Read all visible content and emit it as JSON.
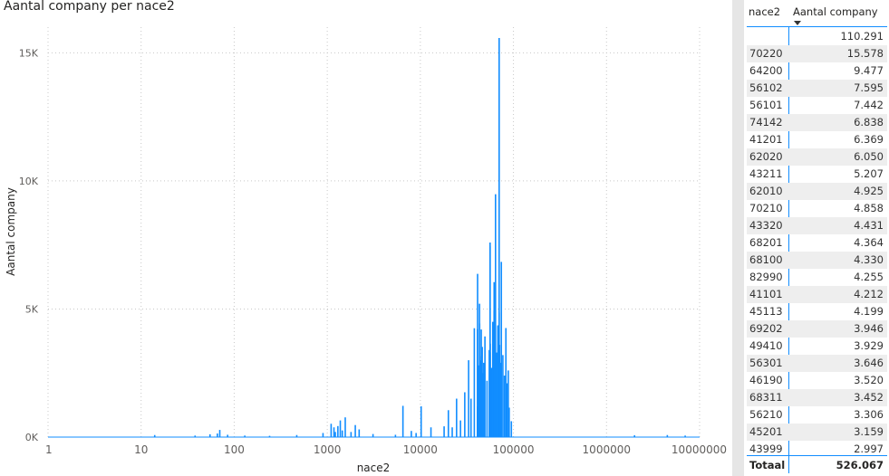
{
  "chart_data": {
    "type": "line",
    "title": "Aantal company per nace2",
    "xlabel": "nace2",
    "ylabel": "Aantal company",
    "xscale": "log",
    "xlim": [
      1,
      10000000
    ],
    "ylim": [
      0,
      16000
    ],
    "grid": true,
    "color": "#118dff",
    "x_ticks": [
      1,
      10,
      100,
      1000,
      10000,
      100000,
      1000000,
      10000000
    ],
    "x_tick_labels": [
      "1",
      "10",
      "100",
      "1000",
      "10000",
      "100000",
      "1000000",
      "10000000"
    ],
    "y_ticks": [
      0,
      5000,
      10000,
      15000
    ],
    "y_tick_labels": [
      "0K",
      "5K",
      "10K",
      "15K"
    ],
    "x": [
      14,
      38,
      55,
      66,
      70,
      85,
      130,
      240,
      470,
      900,
      1100,
      1180,
      1220,
      1300,
      1380,
      1450,
      1560,
      1800,
      2000,
      2200,
      3100,
      5400,
      6500,
      8000,
      9000,
      10200,
      13000,
      18000,
      20000,
      22000,
      24500,
      27000,
      30000,
      33000,
      35000,
      38000,
      41000,
      41101,
      41201,
      42000,
      43211,
      43320,
      43999,
      45000,
      45113,
      45201,
      46190,
      47000,
      48000,
      49410,
      52000,
      55000,
      56101,
      56102,
      56210,
      56301,
      58000,
      60000,
      62010,
      62020,
      64200,
      66000,
      68100,
      68201,
      68311,
      69202,
      70210,
      70220,
      71000,
      73000,
      74142,
      77000,
      80000,
      82990,
      85000,
      88000,
      90000,
      95000,
      2000000,
      4500000,
      7000000
    ],
    "y": [
      80,
      60,
      110,
      140,
      280,
      90,
      60,
      50,
      80,
      160,
      520,
      380,
      200,
      430,
      650,
      260,
      770,
      200,
      470,
      300,
      120,
      90,
      1220,
      240,
      160,
      1200,
      380,
      420,
      1050,
      380,
      1500,
      650,
      1750,
      3000,
      1500,
      4250,
      1200,
      4212,
      6369,
      2800,
      5207,
      4431,
      2997,
      1700,
      4199,
      3159,
      3520,
      2500,
      2900,
      3929,
      2200,
      3400,
      7442,
      7595,
      3306,
      3646,
      2700,
      4500,
      4925,
      6050,
      9477,
      3300,
      4330,
      4364,
      3452,
      3946,
      4858,
      15578,
      3600,
      2900,
      6838,
      3200,
      2400,
      4255,
      2100,
      2600,
      1150,
      620,
      70,
      80,
      60
    ]
  },
  "table": {
    "headers": {
      "nace2": "nace2",
      "count": "Aantal company"
    },
    "rows": [
      {
        "nace2": "",
        "count": "110.291"
      },
      {
        "nace2": "70220",
        "count": "15.578"
      },
      {
        "nace2": "64200",
        "count": "9.477"
      },
      {
        "nace2": "56102",
        "count": "7.595"
      },
      {
        "nace2": "56101",
        "count": "7.442"
      },
      {
        "nace2": "74142",
        "count": "6.838"
      },
      {
        "nace2": "41201",
        "count": "6.369"
      },
      {
        "nace2": "62020",
        "count": "6.050"
      },
      {
        "nace2": "43211",
        "count": "5.207"
      },
      {
        "nace2": "62010",
        "count": "4.925"
      },
      {
        "nace2": "70210",
        "count": "4.858"
      },
      {
        "nace2": "43320",
        "count": "4.431"
      },
      {
        "nace2": "68201",
        "count": "4.364"
      },
      {
        "nace2": "68100",
        "count": "4.330"
      },
      {
        "nace2": "82990",
        "count": "4.255"
      },
      {
        "nace2": "41101",
        "count": "4.212"
      },
      {
        "nace2": "45113",
        "count": "4.199"
      },
      {
        "nace2": "69202",
        "count": "3.946"
      },
      {
        "nace2": "49410",
        "count": "3.929"
      },
      {
        "nace2": "56301",
        "count": "3.646"
      },
      {
        "nace2": "46190",
        "count": "3.520"
      },
      {
        "nace2": "68311",
        "count": "3.452"
      },
      {
        "nace2": "56210",
        "count": "3.306"
      },
      {
        "nace2": "45201",
        "count": "3.159"
      },
      {
        "nace2": "43999",
        "count": "2.997"
      }
    ],
    "total": {
      "label": "Totaal",
      "value": "526.067"
    }
  }
}
